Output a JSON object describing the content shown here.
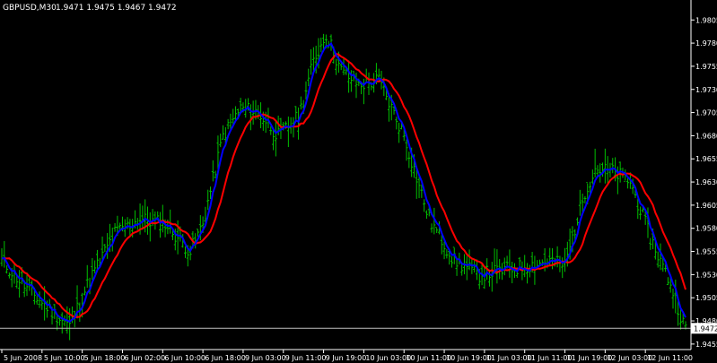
{
  "header": {
    "symbol": "GBPUSD,M30",
    "ohlc": "1.9471 1.9475 1.9467 1.9472"
  },
  "colors": {
    "background": "#000000",
    "bars": "#00c000",
    "ma_fast": "#0000ff",
    "ma_slow": "#ff0000",
    "axis": "#ffffff",
    "bid_line": "#c0c0c0"
  },
  "chart_data": {
    "type": "line",
    "title": "",
    "price_axis_ticks": [
      "1.9805",
      "1.9780",
      "1.9755",
      "1.9730",
      "1.9705",
      "1.9680",
      "1.9655",
      "1.9630",
      "1.9605",
      "1.9580",
      "1.9555",
      "1.9530",
      "1.9505",
      "1.9480",
      "1.9455"
    ],
    "time_axis_ticks": [
      "5 Jun 2008",
      "5 Jun 10:00",
      "5 Jun 18:00",
      "6 Jun 02:00",
      "6 Jun 10:00",
      "6 Jun 18:00",
      "9 Jun 03:00",
      "9 Jun 11:00",
      "9 Jun 19:00",
      "10 Jun 03:00",
      "10 Jun 11:00",
      "10 Jun 19:00",
      "11 Jun 03:00",
      "11 Jun 11:00",
      "11 Jun 19:00",
      "12 Jun 03:00",
      "12 Jun 11:00"
    ],
    "ylim": [
      1.9451,
      1.9813
    ],
    "current_price": "1.9472",
    "bars_per_tick": 16,
    "anchors": [
      [
        0,
        1.9545
      ],
      [
        10,
        1.9515
      ],
      [
        20,
        1.949
      ],
      [
        27,
        1.9475
      ],
      [
        35,
        1.9525
      ],
      [
        45,
        1.9575
      ],
      [
        55,
        1.959
      ],
      [
        65,
        1.9585
      ],
      [
        75,
        1.9555
      ],
      [
        80,
        1.9585
      ],
      [
        88,
        1.968
      ],
      [
        95,
        1.971
      ],
      [
        102,
        1.9705
      ],
      [
        110,
        1.968
      ],
      [
        118,
        1.97
      ],
      [
        124,
        1.976
      ],
      [
        129,
        1.979
      ],
      [
        135,
        1.975
      ],
      [
        142,
        1.9735
      ],
      [
        150,
        1.974
      ],
      [
        160,
        1.968
      ],
      [
        170,
        1.959
      ],
      [
        180,
        1.9545
      ],
      [
        190,
        1.953
      ],
      [
        200,
        1.9535
      ],
      [
        210,
        1.954
      ],
      [
        218,
        1.9545
      ],
      [
        224,
        1.954
      ],
      [
        232,
        1.962
      ],
      [
        236,
        1.9645
      ],
      [
        244,
        1.964
      ],
      [
        250,
        1.963
      ],
      [
        258,
        1.957
      ],
      [
        266,
        1.952
      ],
      [
        272,
        1.947
      ]
    ],
    "series": [
      {
        "name": "",
        "type": "bars"
      },
      {
        "name": "",
        "type": "line"
      },
      {
        "name": "",
        "type": "line"
      }
    ],
    "grid": false
  }
}
